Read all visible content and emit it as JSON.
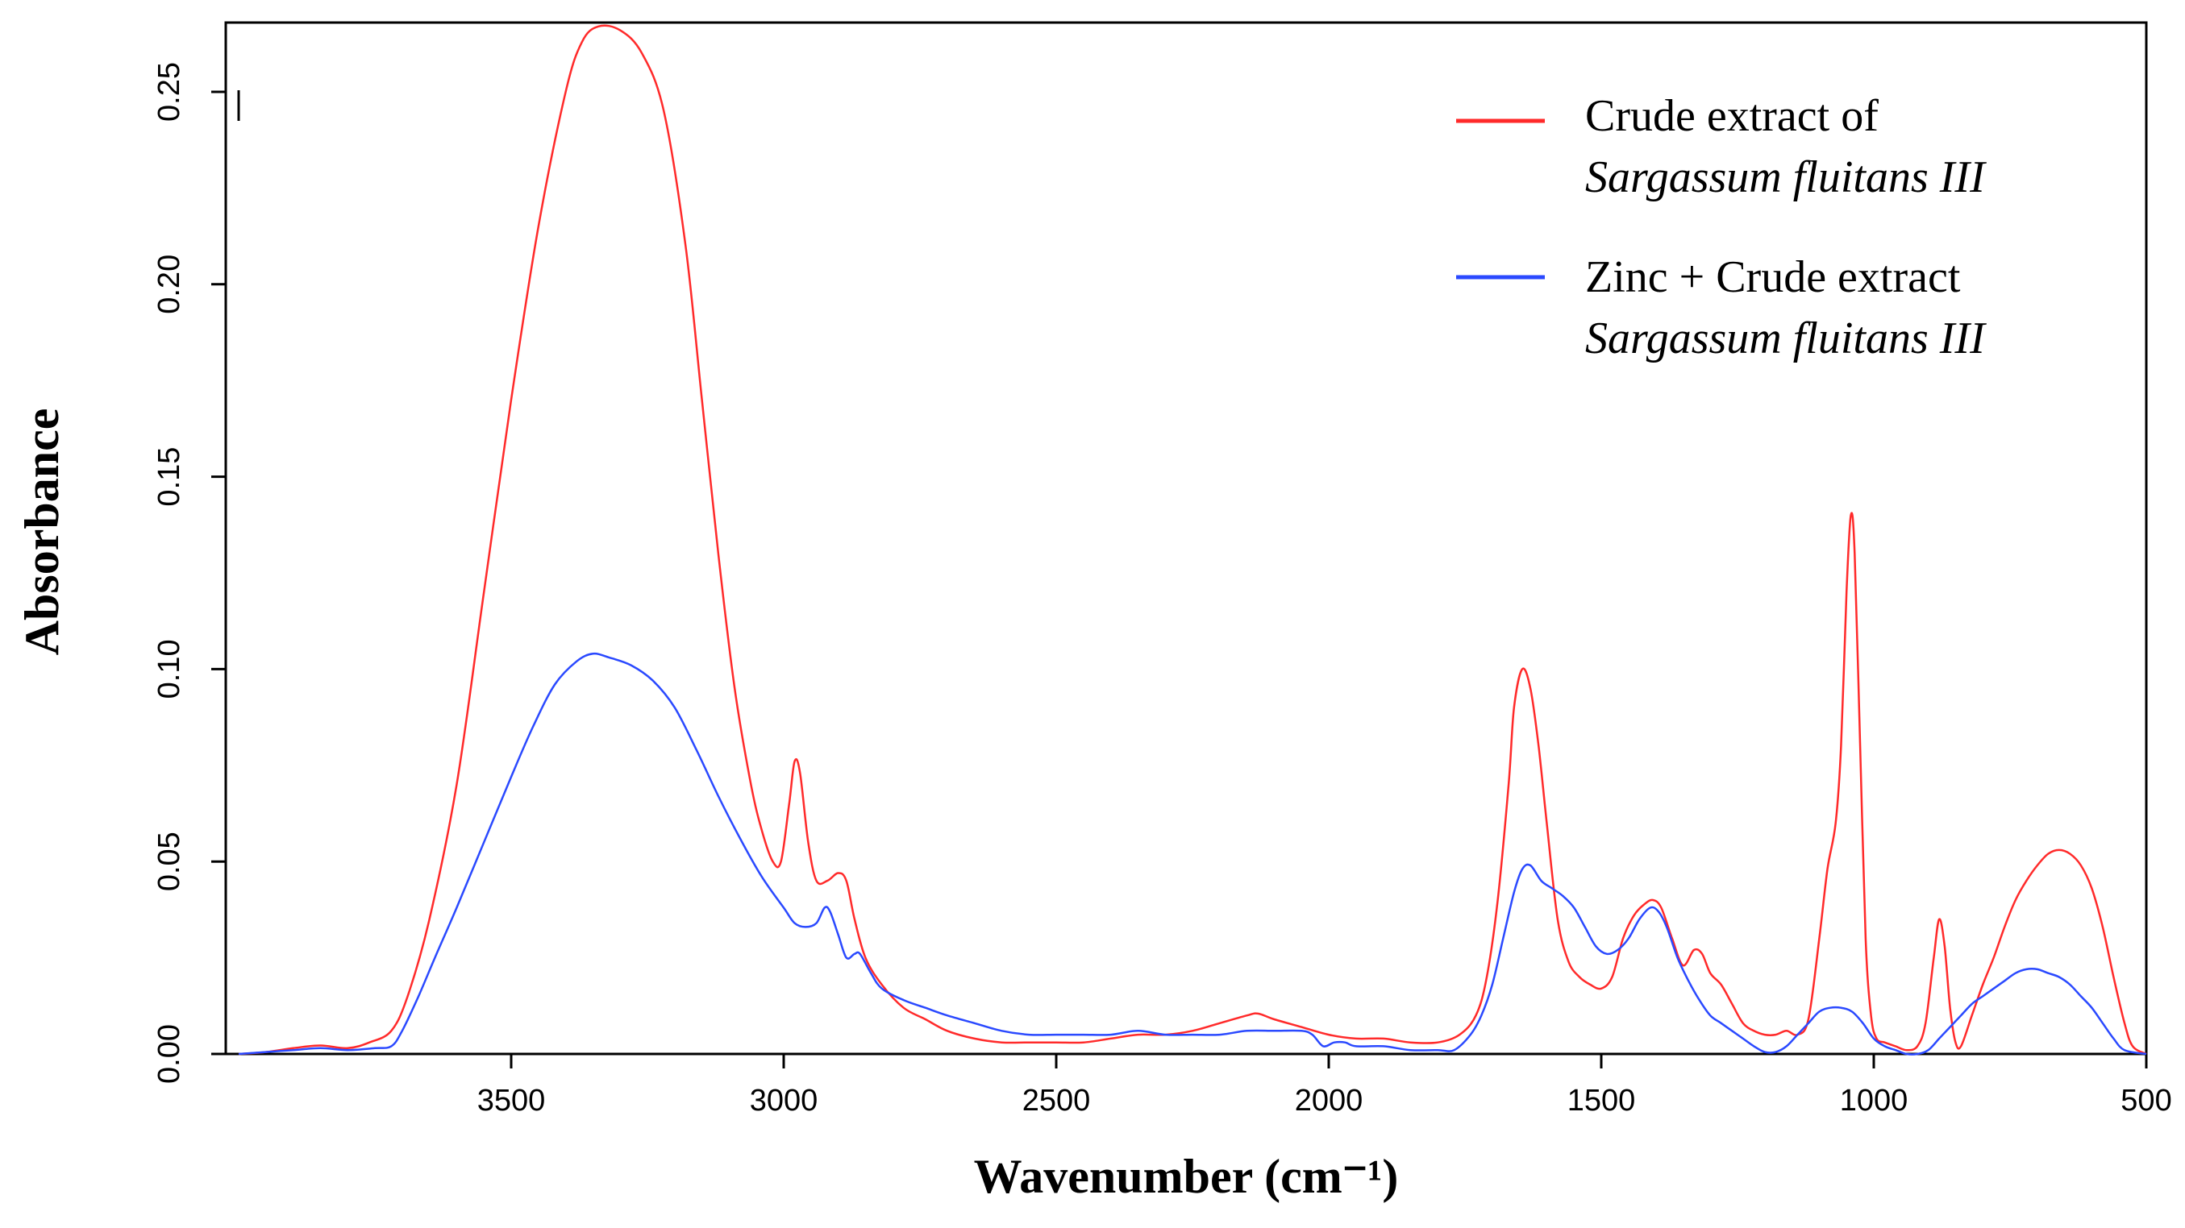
{
  "chart_data": {
    "type": "line",
    "title": "",
    "xlabel": "Wavenumber (cm⁻¹)",
    "ylabel": "Absorbance",
    "xlim": [
      4000,
      500
    ],
    "ylim": [
      0,
      0.268
    ],
    "x_ticks": [
      {
        "value": 3500,
        "label": "3500"
      },
      {
        "value": 3000,
        "label": "3000"
      },
      {
        "value": 2500,
        "label": "2500"
      },
      {
        "value": 2000,
        "label": "2000"
      },
      {
        "value": 1500,
        "label": "1500"
      },
      {
        "value": 1000,
        "label": "1000"
      },
      {
        "value": 500,
        "label": "500"
      }
    ],
    "y_ticks": [
      {
        "value": 0.0,
        "label": "0.00"
      },
      {
        "value": 0.05,
        "label": "0.05"
      },
      {
        "value": 0.1,
        "label": "0.10"
      },
      {
        "value": 0.15,
        "label": "0.15"
      },
      {
        "value": 0.2,
        "label": "0.20"
      },
      {
        "value": 0.25,
        "label": "0.25"
      }
    ],
    "grid": false,
    "legend_position": "top-right",
    "series": [
      {
        "name": "Crude extract of Sargassum fluitans III",
        "legend_line1": "Crude extract of",
        "legend_line2": "Sargassum fluitans III",
        "color": "#ff2a2a",
        "points": [
          [
            4000,
            0.0
          ],
          [
            3950,
            0.0005
          ],
          [
            3900,
            0.0015
          ],
          [
            3850,
            0.0022
          ],
          [
            3800,
            0.0015
          ],
          [
            3760,
            0.003
          ],
          [
            3720,
            0.006
          ],
          [
            3690,
            0.015
          ],
          [
            3650,
            0.035
          ],
          [
            3600,
            0.07
          ],
          [
            3550,
            0.12
          ],
          [
            3500,
            0.17
          ],
          [
            3450,
            0.215
          ],
          [
            3400,
            0.25
          ],
          [
            3370,
            0.263
          ],
          [
            3340,
            0.267
          ],
          [
            3300,
            0.266
          ],
          [
            3260,
            0.26
          ],
          [
            3220,
            0.245
          ],
          [
            3180,
            0.21
          ],
          [
            3150,
            0.17
          ],
          [
            3120,
            0.13
          ],
          [
            3090,
            0.095
          ],
          [
            3060,
            0.07
          ],
          [
            3040,
            0.058
          ],
          [
            3020,
            0.05
          ],
          [
            3005,
            0.05
          ],
          [
            2990,
            0.065
          ],
          [
            2980,
            0.076
          ],
          [
            2970,
            0.073
          ],
          [
            2955,
            0.055
          ],
          [
            2940,
            0.045
          ],
          [
            2920,
            0.045
          ],
          [
            2900,
            0.047
          ],
          [
            2885,
            0.045
          ],
          [
            2870,
            0.035
          ],
          [
            2850,
            0.025
          ],
          [
            2820,
            0.018
          ],
          [
            2780,
            0.012
          ],
          [
            2740,
            0.009
          ],
          [
            2700,
            0.006
          ],
          [
            2650,
            0.004
          ],
          [
            2600,
            0.003
          ],
          [
            2550,
            0.003
          ],
          [
            2500,
            0.003
          ],
          [
            2450,
            0.003
          ],
          [
            2400,
            0.004
          ],
          [
            2350,
            0.005
          ],
          [
            2300,
            0.005
          ],
          [
            2250,
            0.006
          ],
          [
            2200,
            0.008
          ],
          [
            2150,
            0.01
          ],
          [
            2130,
            0.0105
          ],
          [
            2100,
            0.009
          ],
          [
            2050,
            0.007
          ],
          [
            2000,
            0.005
          ],
          [
            1950,
            0.004
          ],
          [
            1900,
            0.004
          ],
          [
            1850,
            0.003
          ],
          [
            1800,
            0.003
          ],
          [
            1760,
            0.005
          ],
          [
            1730,
            0.01
          ],
          [
            1710,
            0.02
          ],
          [
            1690,
            0.04
          ],
          [
            1670,
            0.07
          ],
          [
            1660,
            0.09
          ],
          [
            1645,
            0.1
          ],
          [
            1630,
            0.095
          ],
          [
            1615,
            0.08
          ],
          [
            1600,
            0.06
          ],
          [
            1580,
            0.035
          ],
          [
            1560,
            0.024
          ],
          [
            1540,
            0.02
          ],
          [
            1520,
            0.018
          ],
          [
            1500,
            0.017
          ],
          [
            1480,
            0.02
          ],
          [
            1460,
            0.03
          ],
          [
            1440,
            0.036
          ],
          [
            1420,
            0.039
          ],
          [
            1405,
            0.04
          ],
          [
            1390,
            0.038
          ],
          [
            1370,
            0.03
          ],
          [
            1350,
            0.023
          ],
          [
            1330,
            0.027
          ],
          [
            1315,
            0.026
          ],
          [
            1300,
            0.021
          ],
          [
            1280,
            0.018
          ],
          [
            1260,
            0.013
          ],
          [
            1240,
            0.008
          ],
          [
            1220,
            0.006
          ],
          [
            1200,
            0.005
          ],
          [
            1180,
            0.005
          ],
          [
            1160,
            0.006
          ],
          [
            1140,
            0.005
          ],
          [
            1120,
            0.009
          ],
          [
            1100,
            0.03
          ],
          [
            1085,
            0.048
          ],
          [
            1070,
            0.06
          ],
          [
            1060,
            0.08
          ],
          [
            1050,
            0.12
          ],
          [
            1042,
            0.14
          ],
          [
            1035,
            0.13
          ],
          [
            1025,
            0.08
          ],
          [
            1015,
            0.03
          ],
          [
            1005,
            0.01
          ],
          [
            995,
            0.004
          ],
          [
            980,
            0.003
          ],
          [
            960,
            0.002
          ],
          [
            940,
            0.001
          ],
          [
            920,
            0.002
          ],
          [
            905,
            0.008
          ],
          [
            890,
            0.025
          ],
          [
            880,
            0.035
          ],
          [
            870,
            0.028
          ],
          [
            860,
            0.012
          ],
          [
            850,
            0.003
          ],
          [
            840,
            0.002
          ],
          [
            820,
            0.01
          ],
          [
            800,
            0.018
          ],
          [
            780,
            0.025
          ],
          [
            760,
            0.033
          ],
          [
            740,
            0.04
          ],
          [
            720,
            0.045
          ],
          [
            700,
            0.049
          ],
          [
            680,
            0.052
          ],
          [
            660,
            0.053
          ],
          [
            640,
            0.052
          ],
          [
            620,
            0.049
          ],
          [
            600,
            0.043
          ],
          [
            580,
            0.033
          ],
          [
            560,
            0.02
          ],
          [
            540,
            0.008
          ],
          [
            525,
            0.002
          ],
          [
            500,
            0.0
          ]
        ]
      },
      {
        "name": "Zinc + Crude extract Sargassum fluitans III",
        "legend_line1": "Zinc + Crude extract",
        "legend_line2": "Sargassum fluitans III",
        "color": "#2a49ff",
        "points": [
          [
            4000,
            0.0
          ],
          [
            3950,
            0.0005
          ],
          [
            3900,
            0.001
          ],
          [
            3850,
            0.0015
          ],
          [
            3800,
            0.001
          ],
          [
            3750,
            0.0015
          ],
          [
            3720,
            0.002
          ],
          [
            3700,
            0.006
          ],
          [
            3670,
            0.015
          ],
          [
            3640,
            0.025
          ],
          [
            3600,
            0.038
          ],
          [
            3550,
            0.055
          ],
          [
            3500,
            0.072
          ],
          [
            3460,
            0.085
          ],
          [
            3420,
            0.096
          ],
          [
            3380,
            0.102
          ],
          [
            3350,
            0.104
          ],
          [
            3320,
            0.103
          ],
          [
            3280,
            0.101
          ],
          [
            3240,
            0.097
          ],
          [
            3200,
            0.09
          ],
          [
            3160,
            0.079
          ],
          [
            3120,
            0.067
          ],
          [
            3080,
            0.056
          ],
          [
            3040,
            0.046
          ],
          [
            3000,
            0.038
          ],
          [
            2980,
            0.034
          ],
          [
            2960,
            0.033
          ],
          [
            2940,
            0.034
          ],
          [
            2925,
            0.038
          ],
          [
            2915,
            0.037
          ],
          [
            2900,
            0.031
          ],
          [
            2885,
            0.025
          ],
          [
            2870,
            0.026
          ],
          [
            2860,
            0.026
          ],
          [
            2840,
            0.021
          ],
          [
            2820,
            0.017
          ],
          [
            2780,
            0.014
          ],
          [
            2740,
            0.012
          ],
          [
            2700,
            0.01
          ],
          [
            2650,
            0.008
          ],
          [
            2600,
            0.006
          ],
          [
            2550,
            0.005
          ],
          [
            2500,
            0.005
          ],
          [
            2450,
            0.005
          ],
          [
            2400,
            0.005
          ],
          [
            2350,
            0.006
          ],
          [
            2300,
            0.005
          ],
          [
            2250,
            0.005
          ],
          [
            2200,
            0.005
          ],
          [
            2150,
            0.006
          ],
          [
            2100,
            0.006
          ],
          [
            2050,
            0.006
          ],
          [
            2030,
            0.005
          ],
          [
            2010,
            0.002
          ],
          [
            1990,
            0.003
          ],
          [
            1970,
            0.003
          ],
          [
            1950,
            0.002
          ],
          [
            1900,
            0.002
          ],
          [
            1850,
            0.001
          ],
          [
            1800,
            0.001
          ],
          [
            1770,
            0.001
          ],
          [
            1740,
            0.005
          ],
          [
            1720,
            0.01
          ],
          [
            1700,
            0.018
          ],
          [
            1680,
            0.03
          ],
          [
            1660,
            0.042
          ],
          [
            1645,
            0.048
          ],
          [
            1630,
            0.049
          ],
          [
            1610,
            0.045
          ],
          [
            1590,
            0.043
          ],
          [
            1570,
            0.041
          ],
          [
            1550,
            0.038
          ],
          [
            1530,
            0.033
          ],
          [
            1510,
            0.028
          ],
          [
            1490,
            0.026
          ],
          [
            1470,
            0.027
          ],
          [
            1450,
            0.03
          ],
          [
            1430,
            0.035
          ],
          [
            1410,
            0.038
          ],
          [
            1395,
            0.037
          ],
          [
            1380,
            0.033
          ],
          [
            1360,
            0.025
          ],
          [
            1340,
            0.019
          ],
          [
            1320,
            0.014
          ],
          [
            1300,
            0.01
          ],
          [
            1280,
            0.008
          ],
          [
            1260,
            0.006
          ],
          [
            1240,
            0.004
          ],
          [
            1220,
            0.002
          ],
          [
            1200,
            0.0005
          ],
          [
            1180,
            0.0005
          ],
          [
            1160,
            0.002
          ],
          [
            1140,
            0.005
          ],
          [
            1120,
            0.008
          ],
          [
            1100,
            0.011
          ],
          [
            1080,
            0.012
          ],
          [
            1060,
            0.012
          ],
          [
            1040,
            0.011
          ],
          [
            1020,
            0.008
          ],
          [
            1000,
            0.004
          ],
          [
            980,
            0.002
          ],
          [
            960,
            0.001
          ],
          [
            940,
            0.0
          ],
          [
            920,
            0.0
          ],
          [
            900,
            0.001
          ],
          [
            880,
            0.004
          ],
          [
            860,
            0.007
          ],
          [
            840,
            0.01
          ],
          [
            820,
            0.013
          ],
          [
            800,
            0.015
          ],
          [
            780,
            0.017
          ],
          [
            760,
            0.019
          ],
          [
            740,
            0.021
          ],
          [
            720,
            0.022
          ],
          [
            700,
            0.022
          ],
          [
            680,
            0.021
          ],
          [
            660,
            0.02
          ],
          [
            640,
            0.018
          ],
          [
            620,
            0.015
          ],
          [
            600,
            0.012
          ],
          [
            580,
            0.008
          ],
          [
            560,
            0.004
          ],
          [
            540,
            0.001
          ],
          [
            500,
            0.0
          ]
        ]
      }
    ]
  }
}
